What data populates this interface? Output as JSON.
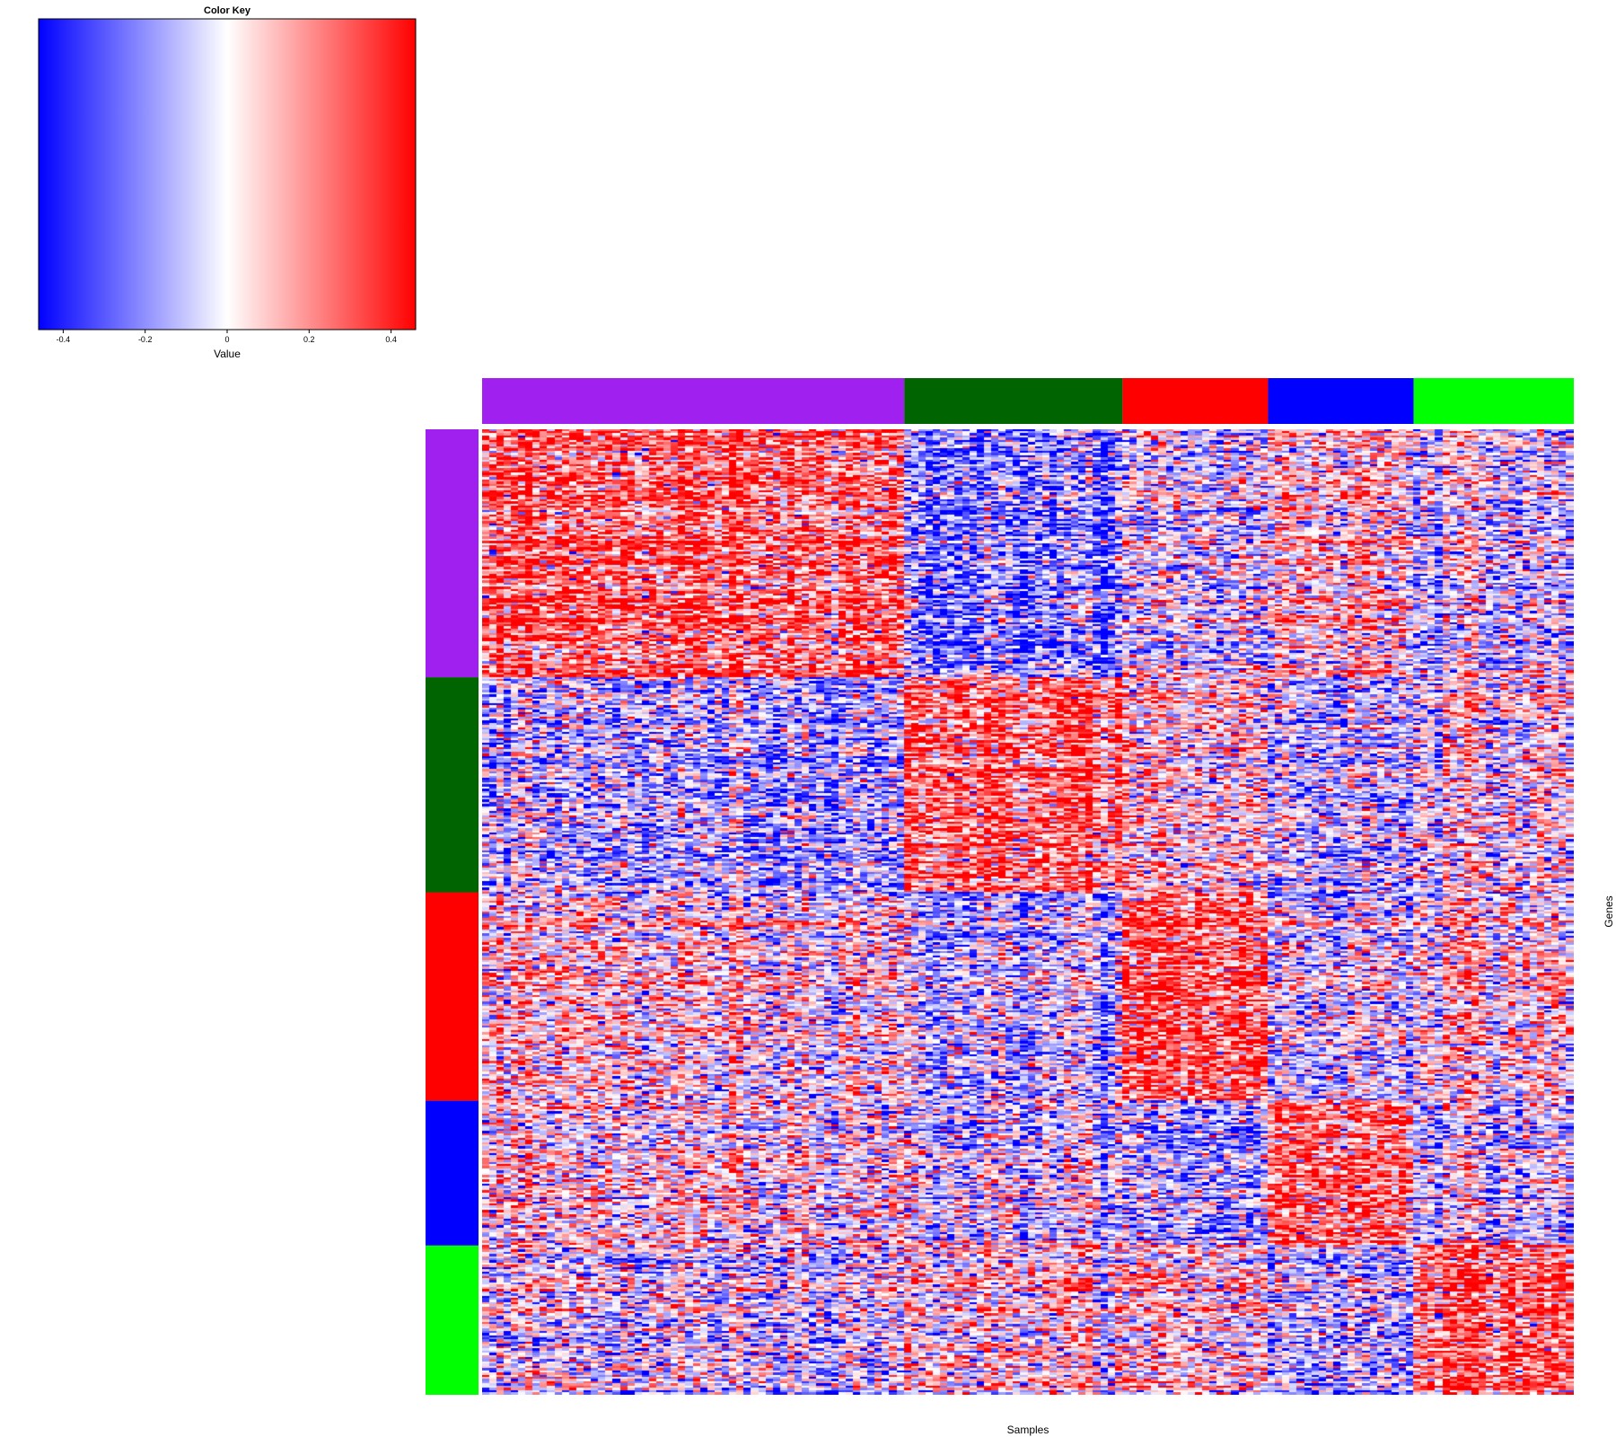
{
  "chart_data": {
    "type": "heatmap",
    "color_key": {
      "title": "Color Key",
      "label": "Value",
      "ticks": [
        "-0.4",
        "-0.2",
        "0",
        "0.2",
        "0.4"
      ],
      "tick_values": [
        -0.4,
        -0.2,
        0,
        0.2,
        0.4
      ],
      "range": [
        -0.46,
        0.46
      ],
      "colors": {
        "low": "#0000ff",
        "mid": "#ffffff",
        "high": "#ff0000"
      }
    },
    "xlabel": "Samples",
    "ylabel": "Genes",
    "n_samples": 150,
    "n_genes": 440,
    "sample_groups": [
      {
        "color": "#a020f0",
        "count": 58
      },
      {
        "color": "#006400",
        "count": 30
      },
      {
        "color": "#ff0000",
        "count": 20
      },
      {
        "color": "#0000ff",
        "count": 20
      },
      {
        "color": "#00ff00",
        "count": 22
      }
    ],
    "gene_groups": [
      {
        "color": "#a020f0",
        "count": 113
      },
      {
        "color": "#006400",
        "count": 98
      },
      {
        "color": "#ff0000",
        "count": 95
      },
      {
        "color": "#0000ff",
        "count": 66
      },
      {
        "color": "#00ff00",
        "count": 68
      }
    ],
    "block_means": [
      [
        0.28,
        -0.22,
        -0.05,
        0.1,
        -0.05
      ],
      [
        -0.15,
        0.25,
        0.05,
        -0.1,
        0.0
      ],
      [
        0.05,
        -0.1,
        0.3,
        -0.05,
        0.05
      ],
      [
        0.05,
        -0.05,
        -0.15,
        0.28,
        -0.05
      ],
      [
        -0.05,
        0.05,
        0.05,
        -0.1,
        0.28
      ]
    ]
  }
}
